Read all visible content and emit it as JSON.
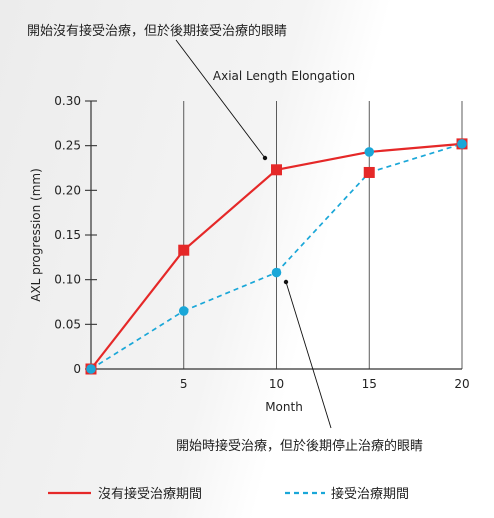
{
  "chart_data": {
    "type": "line",
    "title": "Axial Length Elongation",
    "xlabel": "Month",
    "ylabel": "AXL progression (mm)",
    "x_ticks": [
      5,
      10,
      15,
      20
    ],
    "x_tick_labels": [
      "5",
      "10",
      "15",
      "20"
    ],
    "xlim": [
      0,
      20
    ],
    "y_ticks": [
      0,
      0.05,
      0.1,
      0.15,
      0.2,
      0.25,
      0.3
    ],
    "y_tick_labels": [
      "0",
      "0.05",
      "0.10",
      "0.15",
      "0.20",
      "0.25",
      "0.30"
    ],
    "ylim": [
      0,
      0.3
    ],
    "grid": "vertical",
    "legend_position": "bottom",
    "series": [
      {
        "name": "沒有接受治療期間",
        "style": "solid",
        "marker": "square",
        "color": "#e52828",
        "x": [
          0,
          5,
          10,
          15,
          20
        ],
        "values": [
          0,
          0.133,
          0.223,
          0.22,
          0.252
        ]
      },
      {
        "name": "接受治療期間",
        "style": "dashed",
        "marker": "circle",
        "color": "#1aa7d8",
        "x": [
          0,
          5,
          10,
          15,
          20
        ],
        "values": [
          0,
          0.065,
          0.108,
          0.243,
          0.252
        ]
      }
    ],
    "segments": [
      {
        "from_series": 0,
        "to_series": 0,
        "from_index": 0,
        "to_index": 1
      },
      {
        "from_series": 0,
        "to_series": 0,
        "from_index": 1,
        "to_index": 2
      },
      {
        "from_series": 0,
        "to_series": 1,
        "from_index": 2,
        "to_index": 3
      },
      {
        "from_series": 1,
        "to_series": 1,
        "from_index": 3,
        "to_index": 4
      },
      {
        "from_series": 1,
        "to_series": 1,
        "from_index": 0,
        "to_index": 1
      },
      {
        "from_series": 1,
        "to_series": 1,
        "from_index": 1,
        "to_index": 2
      },
      {
        "from_series": 1,
        "to_series": 0,
        "from_index": 2,
        "to_index": 3
      },
      {
        "from_series": 0,
        "to_series": 0,
        "from_index": 3,
        "to_index": 4
      }
    ],
    "annotations": [
      {
        "text": "開始沒有接受治療，但於後期接受治療的眼睛",
        "point_series": 0,
        "point_index": 2
      },
      {
        "text": "開始時接受治療，但於後期停止治療的眼睛",
        "point_series": 1,
        "point_index": 2
      }
    ]
  },
  "legend": {
    "items": [
      {
        "label": "沒有接受治療期間",
        "color": "#e52828",
        "style": "solid"
      },
      {
        "label": "接受治療期間",
        "color": "#1aa7d8",
        "style": "dashed"
      }
    ]
  }
}
